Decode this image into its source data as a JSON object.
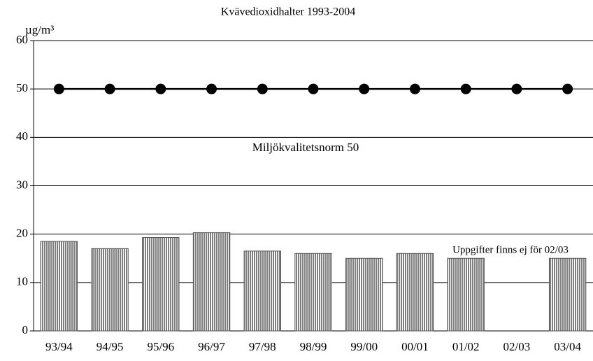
{
  "chart_data": {
    "type": "bar",
    "title": "Kvävedioxidhalter 1993-2004",
    "y_label": "µg/m³",
    "annotations": [
      "Miljökvalitetsnorm 50",
      "Uppgifter finns ej för 02/03"
    ],
    "categories": [
      "93/94",
      "94/95",
      "95/96",
      "96/97",
      "97/98",
      "98/99",
      "99/00",
      "00/01",
      "01/02",
      "02/03",
      "03/04"
    ],
    "series": [
      {
        "type": "bar",
        "color": "#808080",
        "values": [
          18.5,
          17,
          19.3,
          20.3,
          16.5,
          16,
          15,
          16,
          15,
          null,
          15
        ]
      },
      {
        "type": "line",
        "color": "#000000",
        "values": [
          50,
          50,
          50,
          50,
          50,
          50,
          50,
          50,
          50,
          50,
          50
        ]
      }
    ],
    "ylim": [
      0,
      60
    ],
    "yticks": [
      0,
      10,
      20,
      30,
      40,
      50,
      60
    ],
    "grid": true
  }
}
